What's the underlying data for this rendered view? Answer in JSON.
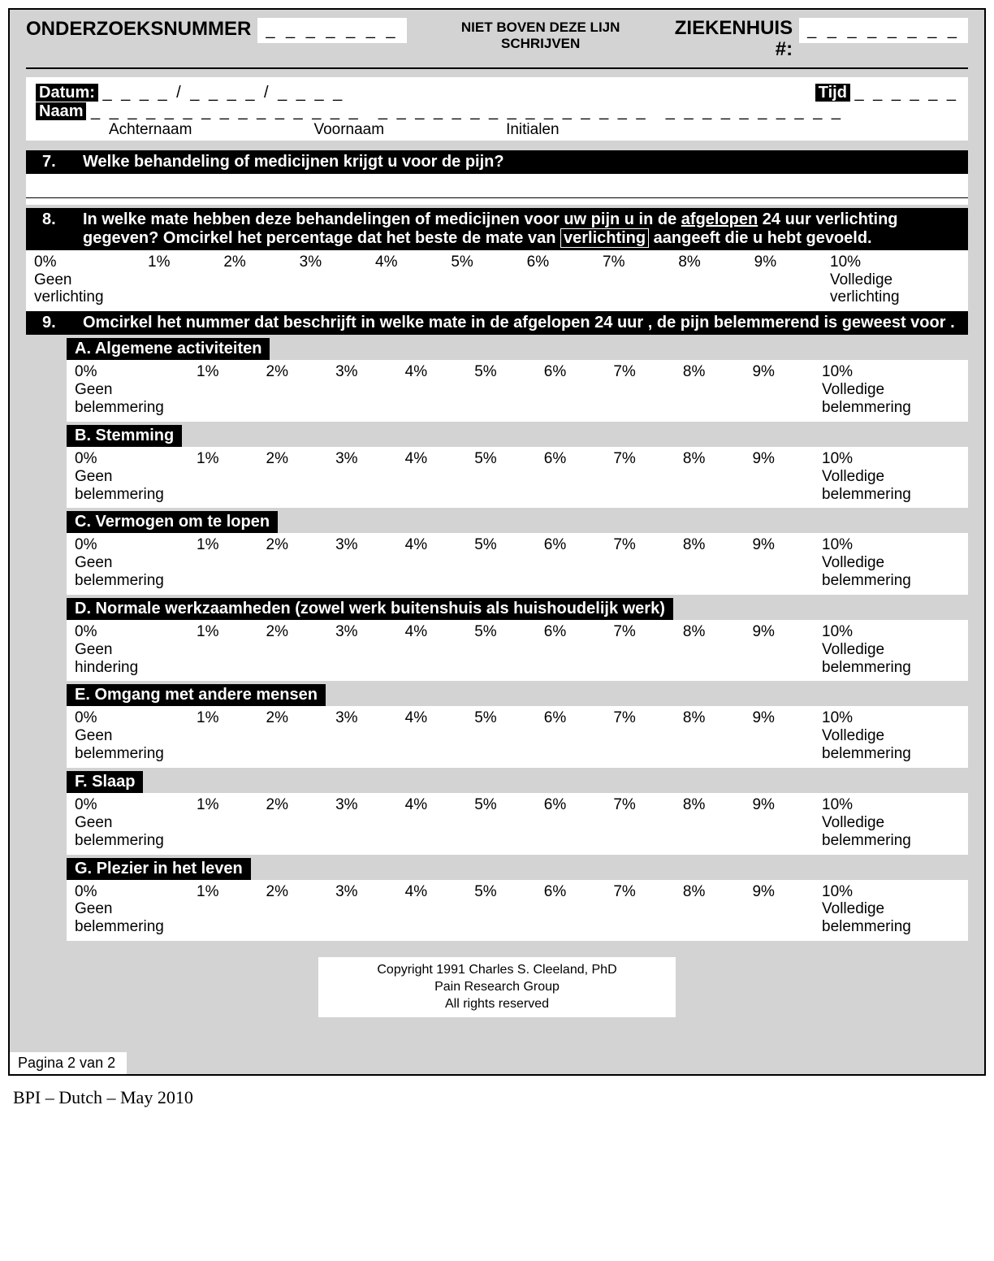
{
  "header": {
    "onderzoek_label": "ONDERZOEKSNUMMER",
    "onderzoek_blank": "_ _ _ _ _ _ _",
    "center_line1": "NIET BOVEN DEZE LIJN",
    "center_line2": "SCHRIJVEN",
    "ziekenhuis_label": "ZIEKENHUIS",
    "ziekenhuis_hash": "#:",
    "ziekenhuis_blank": "_ _ _ _ _ _ _ _"
  },
  "info": {
    "datum_label": "Datum:",
    "datum_blank": "_ _ _ _ / _ _ _ _ / _ _ _ _",
    "tijd_label": "Tijd",
    "tijd_blank": "_ _ _ _ _ _",
    "naam_label": "Naam",
    "naam_blank1": "_ _ _ _ _ _ _ _ _ _ _ _ _ _ _",
    "naam_blank2": "_ _ _ _ _ _ _ _ _ _ _ _ _ _ _",
    "naam_blank3": "_ _ _ _ _ _ _ _ _ _",
    "achternaam": "Achternaam",
    "voornaam": "Voornaam",
    "initialen": "Initialen"
  },
  "q7": {
    "num": "7.",
    "text": "Welke behandeling of medicijnen krijgt u voor de pijn?"
  },
  "q8": {
    "num": "8.",
    "text_a": "In welke mate hebben deze behandelingen of medicijnen voor uw pijn u in de ",
    "text_b": "afgelopen",
    "text_c": " 24 uur verlichting gegeven? Omcirkel het percentage dat het beste de mate van ",
    "text_d": "verlichting",
    "text_e": " aangeeft die u hebt gevoeld.",
    "scale": [
      "0%",
      "1%",
      "2%",
      "3%",
      "4%",
      "5%",
      "6%",
      "7%",
      "8%",
      "9%",
      "10%"
    ],
    "left_label1": "Geen",
    "left_label2": "verlichting",
    "right_label1": "Volledige",
    "right_label2": "verlichting"
  },
  "q9": {
    "num": "9.",
    "text": "Omcirkel het nummer dat beschrijft in welke mate in de afgelopen 24 uur , de pijn belemmerend is geweest voor .",
    "scale": [
      "0%",
      "1%",
      "2%",
      "3%",
      "4%",
      "5%",
      "6%",
      "7%",
      "8%",
      "9%",
      "10%"
    ],
    "left_b1": "Geen",
    "left_b2": "belemmering",
    "left_h1": "Geen",
    "left_h2": "hindering",
    "right_b1": "Volledige",
    "right_b2": "belemmering",
    "subs": {
      "A": "A.   Algemene activiteiten",
      "B": "B.   Stemming",
      "C": "C. Vermogen om te lopen",
      "D": "D.  Normale werkzaamheden (zowel werk buitenshuis als huishoudelijk werk)",
      "E": "E.   Omgang met andere mensen",
      "F": "F.    Slaap",
      "G": "G.   Plezier in het leven"
    }
  },
  "copyright": {
    "l1": "Copyright 1991 Charles S. Cleeland, PhD",
    "l2": "Pain Research Group",
    "l3": "All rights reserved"
  },
  "page_num": "Pagina 2 van 2",
  "footer": "BPI – Dutch – May 2010",
  "colors": {
    "page_bg": "#d3d3d3",
    "black": "#000000",
    "white": "#ffffff"
  }
}
